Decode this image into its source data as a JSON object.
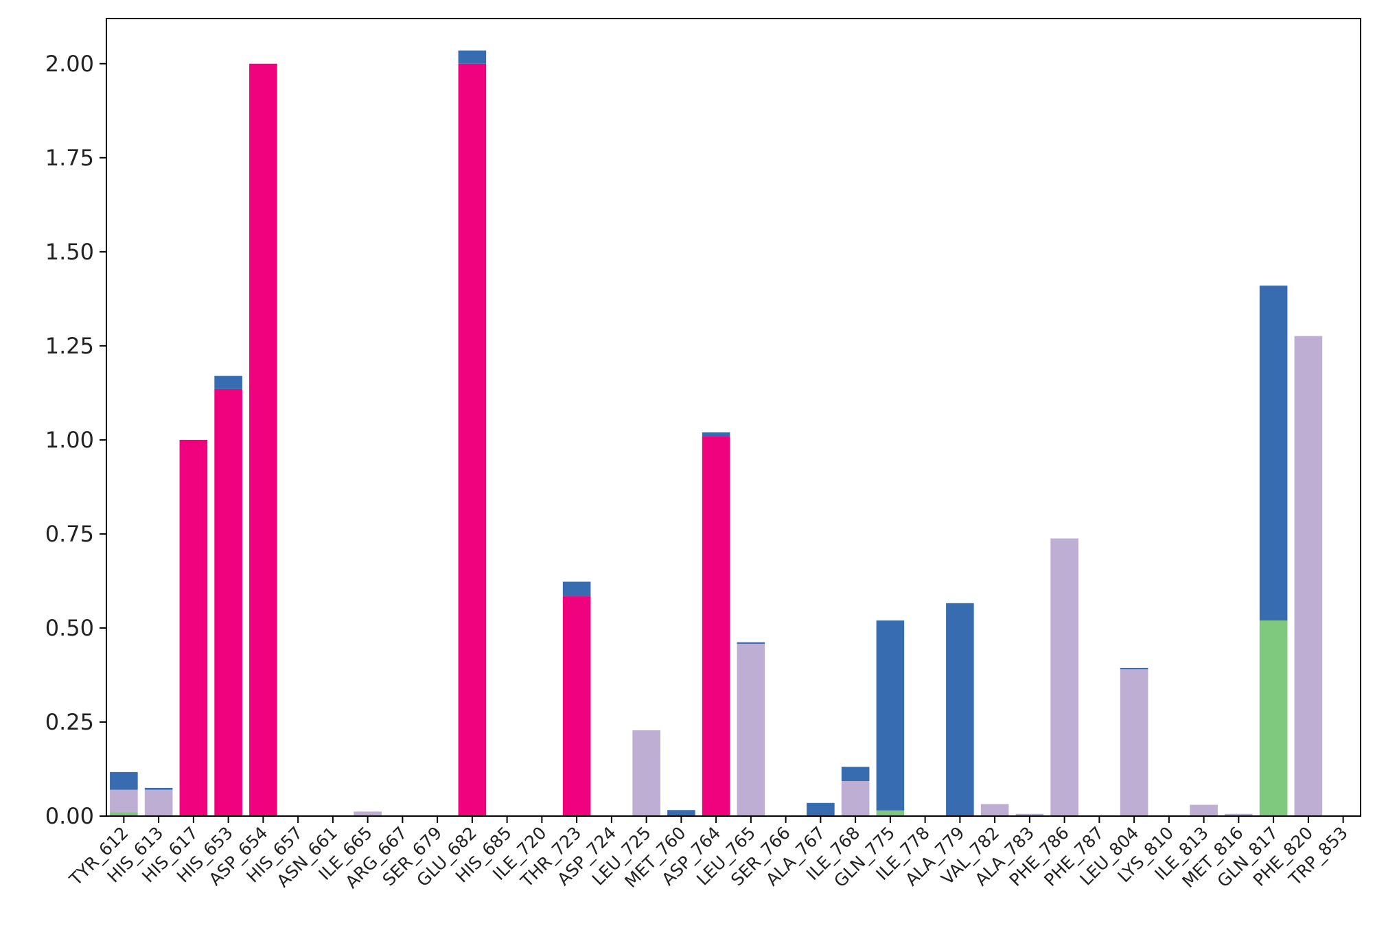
{
  "chart_data": {
    "type": "bar",
    "stacked": true,
    "title": "",
    "xlabel": "",
    "ylabel": "",
    "ylim": [
      0,
      2.12
    ],
    "yticks": [
      "0.00",
      "0.25",
      "0.50",
      "0.75",
      "1.00",
      "1.25",
      "1.50",
      "1.75",
      "2.00"
    ],
    "grid": false,
    "legend": "none",
    "categories": [
      "TYR_612",
      "HIS_613",
      "HIS_617",
      "HIS_653",
      "ASP_654",
      "HIS_657",
      "ASN_661",
      "ILE_665",
      "ARG_667",
      "SER_679",
      "GLU_682",
      "HIS_685",
      "ILE_720",
      "THR_723",
      "ASP_724",
      "LEU_725",
      "MET_760",
      "ASP_764",
      "LEU_765",
      "SER_766",
      "ALA_767",
      "ILE_768",
      "GLN_775",
      "ILE_778",
      "ALA_779",
      "VAL_782",
      "ALA_783",
      "PHE_786",
      "PHE_787",
      "LEU_804",
      "LYS_810",
      "ILE_813",
      "MET_816",
      "GLN_817",
      "PHE_820",
      "TRP_853"
    ],
    "series": [
      {
        "color": "#7fc97f",
        "values": [
          0.01,
          0,
          0,
          0,
          0,
          0,
          0,
          0,
          0,
          0,
          0,
          0,
          0,
          0,
          0,
          0,
          0,
          0,
          0,
          0,
          0,
          0,
          0.015,
          0,
          0,
          0,
          0,
          0,
          0,
          0,
          0,
          0,
          0,
          0.52,
          0,
          0
        ]
      },
      {
        "color": "#beaed4",
        "values": [
          0.06,
          0.07,
          0,
          0,
          0,
          0,
          0,
          0.012,
          0,
          0,
          0,
          0,
          0,
          0,
          0,
          0.228,
          0,
          0,
          0.458,
          0,
          0,
          0.093,
          0,
          0,
          0,
          0.032,
          0.006,
          0.738,
          0,
          0.39,
          0,
          0.03,
          0.006,
          0,
          1.276,
          0
        ]
      },
      {
        "color": "#f0027f",
        "values": [
          0,
          0,
          1.0,
          1.135,
          2.0,
          0,
          0,
          0,
          0,
          0,
          2.0,
          0,
          0,
          0.585,
          0,
          0,
          0,
          1.01,
          0,
          0,
          0,
          0,
          0,
          0,
          0,
          0,
          0,
          0,
          0,
          0,
          0,
          0,
          0,
          0,
          0,
          0
        ]
      },
      {
        "color": "#386cb0",
        "values": [
          0.047,
          0.005,
          0,
          0.035,
          0,
          0,
          0,
          0,
          0,
          0,
          0.035,
          0,
          0,
          0.038,
          0,
          0,
          0.016,
          0.01,
          0.004,
          0,
          0.035,
          0.038,
          0.505,
          0,
          0.566,
          0,
          0,
          0,
          0,
          0.004,
          0,
          0,
          0,
          0.89,
          0,
          0
        ]
      }
    ]
  }
}
